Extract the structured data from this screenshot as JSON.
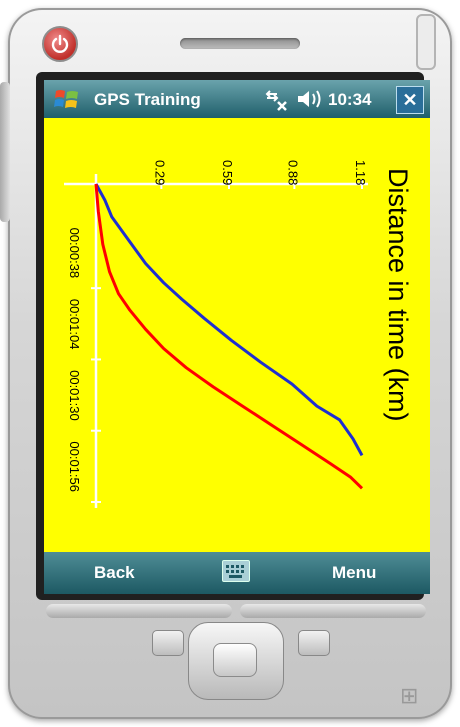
{
  "status_bar": {
    "app_title": "GPS Training",
    "time": "10:34",
    "close_label": "✕",
    "bg_color": "#1f5f6b"
  },
  "chart_data": {
    "type": "line",
    "title": "Distance in time (km)",
    "distance_ticks": [
      "0.29",
      "0.59",
      "0.88",
      "1.18"
    ],
    "time_ticks": [
      "00:00:38",
      "00:01:04",
      "00:01:30",
      "00:01:56"
    ],
    "xlim_km": [
      0,
      1.18
    ],
    "ylim_seconds": [
      0,
      116
    ],
    "grid": false,
    "background_color": "#ffff00",
    "series": [
      {
        "color": "#1f2fd0",
        "x": [
          0.0,
          0.04,
          0.07,
          0.14,
          0.22,
          0.3,
          0.38,
          0.48,
          0.6,
          0.73,
          0.87,
          0.98,
          1.08,
          1.14,
          1.18
        ],
        "y": [
          0,
          6,
          12,
          20,
          29,
          36,
          42,
          49,
          57,
          65,
          73,
          81,
          86,
          93,
          99
        ]
      },
      {
        "color": "#ff0000",
        "x": [
          0.0,
          0.01,
          0.03,
          0.06,
          0.1,
          0.15,
          0.22,
          0.3,
          0.4,
          0.52,
          0.65,
          0.78,
          0.91,
          1.04,
          1.13,
          1.18
        ],
        "y": [
          0,
          10,
          22,
          32,
          40,
          46,
          53,
          60,
          67,
          74,
          81,
          88,
          95,
          102,
          107,
          111
        ]
      }
    ]
  },
  "menu_bar": {
    "left_softkey": "Back",
    "right_softkey": "Menu",
    "keyboard_icon": "keyboard-icon"
  },
  "hardware": {
    "power_icon": "power-icon",
    "windows_icon": "windows-flag-icon"
  }
}
